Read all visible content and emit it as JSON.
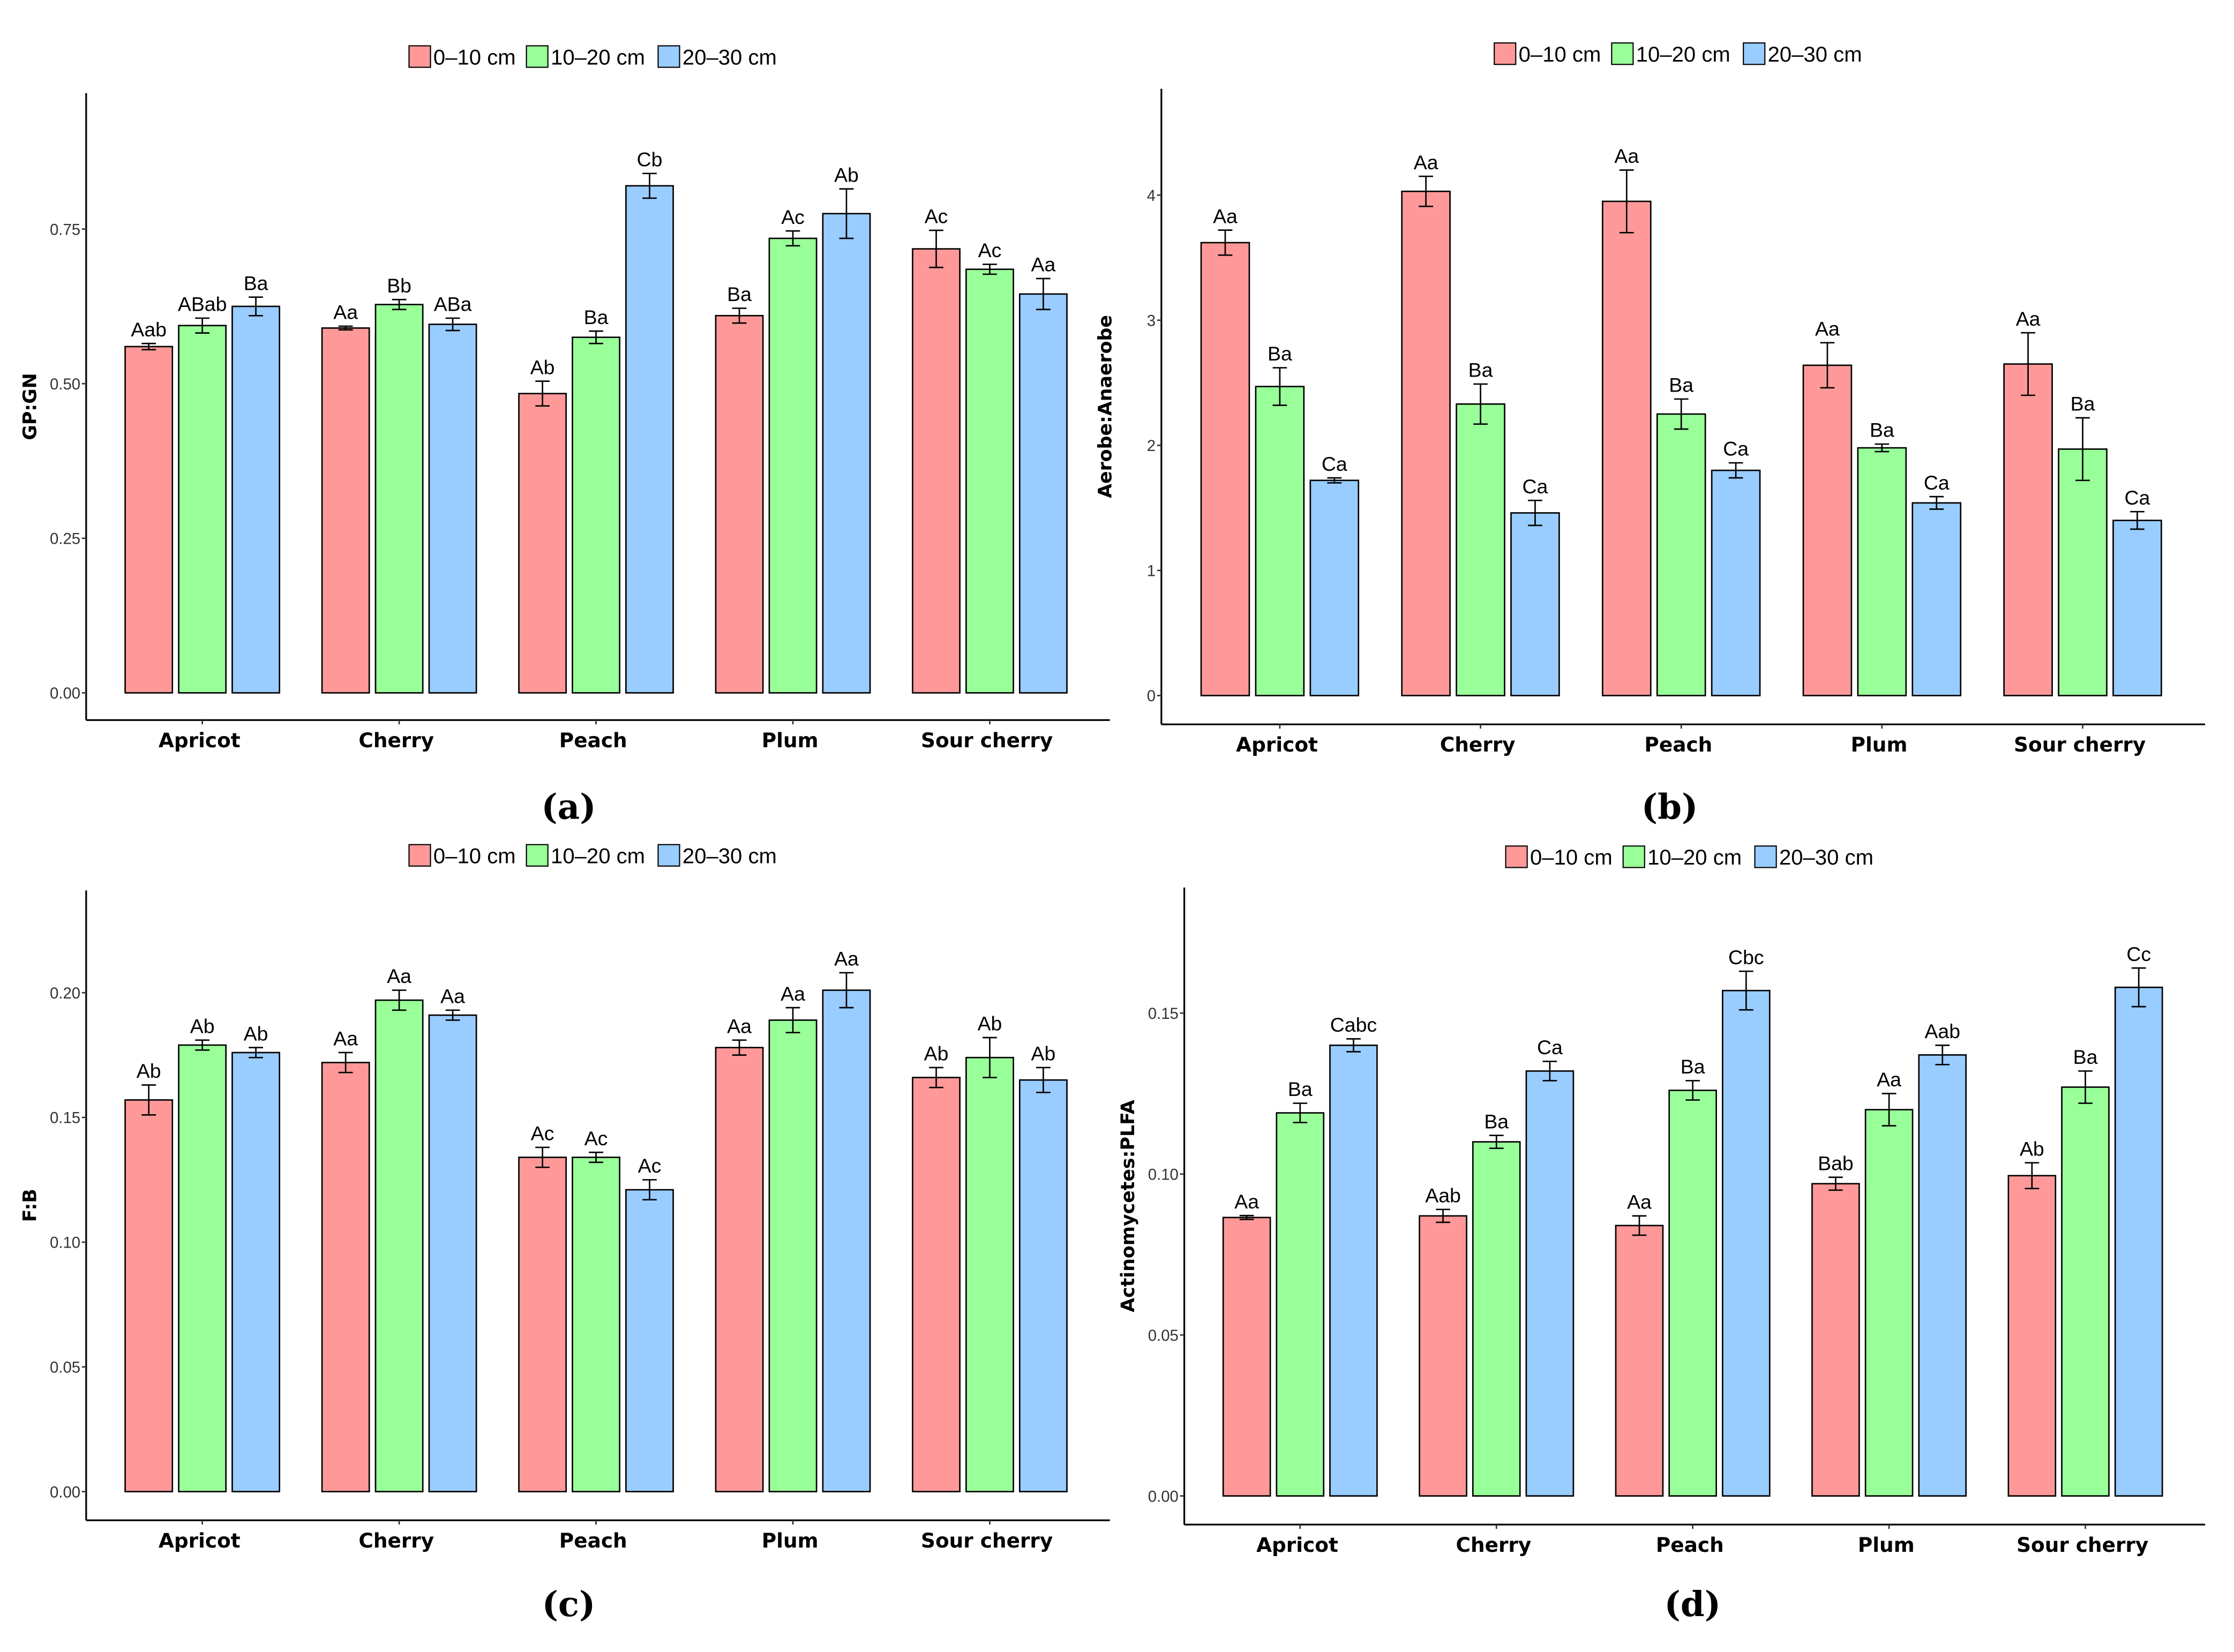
{
  "colors": {
    "0-10": "#FF9999",
    "10-20": "#99FF99",
    "20-30": "#99CCFF"
  },
  "chart_data": [
    {
      "type": "bar",
      "panel_label": "(a)",
      "ylabel": "GP:GN",
      "xlabel": "",
      "legend": [
        "0–10 cm",
        "10–20 cm",
        "20–30 cm"
      ],
      "legend_position": "top",
      "categories": [
        "Apricot",
        "Cherry",
        "Peach",
        "Plum",
        "Sour cherry"
      ],
      "yticks": [
        "0.00",
        "0.25",
        "0.50",
        "0.75"
      ],
      "ytick_values": [
        0,
        0.25,
        0.5,
        0.75
      ],
      "ylim": [
        -0.044,
        0.97
      ],
      "grid": false,
      "series": [
        {
          "name": "0–10 cm",
          "values": [
            0.56,
            0.59,
            0.484,
            0.61,
            0.718
          ],
          "errors": [
            0.005,
            0.003,
            0.02,
            0.012,
            0.03
          ],
          "letters": [
            "Aab",
            "Aa",
            "Ab",
            "Ba",
            "Ac"
          ]
        },
        {
          "name": "10–20 cm",
          "values": [
            0.594,
            0.628,
            0.575,
            0.735,
            0.685
          ],
          "errors": [
            0.012,
            0.008,
            0.01,
            0.012,
            0.008
          ],
          "letters": [
            "ABab",
            "Bb",
            "Ba",
            "Ac",
            "Ac"
          ]
        },
        {
          "name": "20–30 cm",
          "values": [
            0.625,
            0.596,
            0.82,
            0.775,
            0.645
          ],
          "errors": [
            0.015,
            0.01,
            0.02,
            0.04,
            0.025
          ],
          "letters": [
            "Ba",
            "ABa",
            "Cb",
            "Ab",
            "Aa"
          ]
        }
      ]
    },
    {
      "type": "bar",
      "panel_label": "(b)",
      "ylabel": "Aerobe:Anaerobe",
      "xlabel": "",
      "legend": [
        "0–10 cm",
        "10–20 cm",
        "20–30 cm"
      ],
      "legend_position": "top",
      "categories": [
        "Apricot",
        "Cherry",
        "Peach",
        "Plum",
        "Sour cherry"
      ],
      "yticks": [
        "0",
        "1",
        "2",
        "3",
        "4"
      ],
      "ytick_values": [
        0,
        1,
        2,
        3,
        4
      ],
      "ylim": [
        -0.23,
        4.85
      ],
      "grid": false,
      "series": [
        {
          "name": "0–10 cm",
          "values": [
            3.62,
            4.03,
            3.95,
            2.64,
            2.65
          ],
          "errors": [
            0.1,
            0.12,
            0.25,
            0.18,
            0.25
          ],
          "letters": [
            "Aa",
            "Aa",
            "Aa",
            "Aa",
            "Aa"
          ]
        },
        {
          "name": "10–20 cm",
          "values": [
            2.47,
            2.33,
            2.25,
            1.98,
            1.97
          ],
          "errors": [
            0.15,
            0.16,
            0.12,
            0.03,
            0.25
          ],
          "letters": [
            "Ba",
            "Ba",
            "Ba",
            "Ba",
            "Ba"
          ]
        },
        {
          "name": "20–30 cm",
          "values": [
            1.72,
            1.46,
            1.8,
            1.54,
            1.4
          ],
          "errors": [
            0.02,
            0.1,
            0.06,
            0.05,
            0.07
          ],
          "letters": [
            "Ca",
            "Ca",
            "Ca",
            "Ca",
            "Ca"
          ]
        }
      ]
    },
    {
      "type": "bar",
      "panel_label": "(c)",
      "ylabel": "F:B",
      "xlabel": "",
      "legend": [
        "0–10 cm",
        "10–20 cm",
        "20–30 cm"
      ],
      "legend_position": "top",
      "categories": [
        "Apricot",
        "Cherry",
        "Peach",
        "Plum",
        "Sour cherry"
      ],
      "yticks": [
        "0.00",
        "0.05",
        "0.10",
        "0.15",
        "0.20"
      ],
      "ytick_values": [
        0,
        0.05,
        0.1,
        0.15,
        0.2
      ],
      "ylim": [
        -0.0115,
        0.241
      ],
      "grid": false,
      "series": [
        {
          "name": "0–10 cm",
          "values": [
            0.157,
            0.172,
            0.134,
            0.178,
            0.166
          ],
          "errors": [
            0.006,
            0.004,
            0.004,
            0.003,
            0.004
          ],
          "letters": [
            "Ab",
            "Aa",
            "Ac",
            "Aa",
            "Ab"
          ]
        },
        {
          "name": "10–20 cm",
          "values": [
            0.179,
            0.197,
            0.134,
            0.189,
            0.174
          ],
          "errors": [
            0.002,
            0.004,
            0.002,
            0.005,
            0.008
          ],
          "letters": [
            "Ab",
            "Aa",
            "Ac",
            "Aa",
            "Ab"
          ]
        },
        {
          "name": "20–30 cm",
          "values": [
            0.176,
            0.191,
            0.121,
            0.201,
            0.165
          ],
          "errors": [
            0.002,
            0.002,
            0.004,
            0.007,
            0.005
          ],
          "letters": [
            "Ab",
            "Aa",
            "Ac",
            "Aa",
            "Ab"
          ]
        }
      ]
    },
    {
      "type": "bar",
      "panel_label": "(d)",
      "ylabel": "Actinomycetes:PLFA",
      "xlabel": "",
      "legend": [
        "0–10 cm",
        "10–20 cm",
        "20–30 cm"
      ],
      "legend_position": "top",
      "categories": [
        "Apricot",
        "Cherry",
        "Peach",
        "Plum",
        "Sour cherry"
      ],
      "yticks": [
        "0.00",
        "0.05",
        "0.10",
        "0.15"
      ],
      "ytick_values": [
        0,
        0.05,
        0.1,
        0.15
      ],
      "ylim": [
        -0.0089,
        0.189
      ],
      "grid": false,
      "series": [
        {
          "name": "0–10 cm",
          "values": [
            0.0865,
            0.087,
            0.084,
            0.097,
            0.0995
          ],
          "errors": [
            0.0006,
            0.002,
            0.003,
            0.002,
            0.004
          ],
          "letters": [
            "Aa",
            "Aab",
            "Aa",
            "Bab",
            "Ab"
          ]
        },
        {
          "name": "10–20 cm",
          "values": [
            0.119,
            0.11,
            0.126,
            0.12,
            0.127
          ],
          "errors": [
            0.003,
            0.002,
            0.003,
            0.005,
            0.005
          ],
          "letters": [
            "Ba",
            "Ba",
            "Ba",
            "Aa",
            "Ba"
          ]
        },
        {
          "name": "20–30 cm",
          "values": [
            0.14,
            0.132,
            0.157,
            0.137,
            0.158
          ],
          "errors": [
            0.002,
            0.003,
            0.006,
            0.003,
            0.006
          ],
          "letters": [
            "Cabc",
            "Ca",
            "Cbc",
            "Aab",
            "Cc"
          ]
        }
      ]
    }
  ]
}
